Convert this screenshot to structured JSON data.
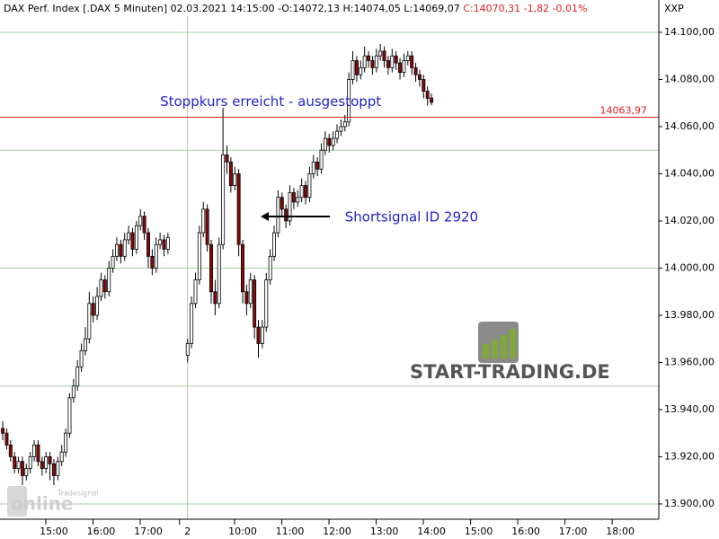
{
  "chart_data": {
    "type": "candlestick",
    "title": "DAX Perf. Index [.DAX  5 Minuten] 02.03.2021 14:15:00 -O:14072,13 H:14074,05 L:14069,07",
    "title_change": "C:14070,31 -1,82 -0,01%",
    "corner_label": "XXP",
    "up_color": "#ffffff",
    "down_color": "#8b0a0a",
    "candles": [
      [
        0,
        13932,
        13935,
        13927,
        13930
      ],
      [
        1,
        13930,
        13932,
        13923,
        13925
      ],
      [
        2,
        13925,
        13927,
        13918,
        13920
      ],
      [
        3,
        13920,
        13922,
        13913,
        13915
      ],
      [
        4,
        13915,
        13920,
        13913,
        13918
      ],
      [
        5,
        13918,
        13920,
        13908,
        13912
      ],
      [
        6,
        13912,
        13917,
        13910,
        13915
      ],
      [
        7,
        13915,
        13922,
        13913,
        13920
      ],
      [
        8,
        13920,
        13927,
        13918,
        13925
      ],
      [
        9,
        13925,
        13927,
        13916,
        13918
      ],
      [
        10,
        13918,
        13920,
        13912,
        13915
      ],
      [
        11,
        13915,
        13922,
        13913,
        13920
      ],
      [
        12,
        13920,
        13922,
        13910,
        13917
      ],
      [
        13,
        13917,
        13919,
        13908,
        13912
      ],
      [
        14,
        13912,
        13920,
        13910,
        13918
      ],
      [
        15,
        13918,
        13925,
        13916,
        13922
      ],
      [
        16,
        13922,
        13932,
        13920,
        13930
      ],
      [
        17,
        13930,
        13947,
        13928,
        13945
      ],
      [
        18,
        13945,
        13953,
        13943,
        13950
      ],
      [
        19,
        13950,
        13961,
        13948,
        13958
      ],
      [
        20,
        13958,
        13968,
        13956,
        13965
      ],
      [
        21,
        13965,
        13975,
        13963,
        13970
      ],
      [
        22,
        13970,
        13990,
        13968,
        13985
      ],
      [
        23,
        13985,
        13988,
        13977,
        13980
      ],
      [
        24,
        13980,
        13992,
        13978,
        13988
      ],
      [
        25,
        13988,
        13998,
        13986,
        13995
      ],
      [
        26,
        13995,
        13997,
        13987,
        13990
      ],
      [
        27,
        13990,
        14003,
        13988,
        14000
      ],
      [
        28,
        14000,
        14008,
        13998,
        14005
      ],
      [
        29,
        14005,
        14013,
        14003,
        14010
      ],
      [
        30,
        14010,
        14012,
        14002,
        14005
      ],
      [
        31,
        14005,
        14015,
        14003,
        14012
      ],
      [
        32,
        14012,
        14018,
        14010,
        14015
      ],
      [
        33,
        14015,
        14017,
        14005,
        14008
      ],
      [
        34,
        14008,
        14020,
        14006,
        14018
      ],
      [
        35,
        14018,
        14025,
        14016,
        14022
      ],
      [
        36,
        14022,
        14024,
        14012,
        14015
      ],
      [
        37,
        14015,
        14017,
        14000,
        14005
      ],
      [
        38,
        14005,
        14008,
        13997,
        14000
      ],
      [
        39,
        14000,
        14013,
        13998,
        14010
      ],
      [
        40,
        14010,
        14015,
        14008,
        14012
      ],
      [
        41,
        14012,
        14014,
        14005,
        14008
      ],
      [
        42,
        14008,
        14015,
        14006,
        14013
      ],
      [
        47,
        13963,
        13970,
        13960,
        13968
      ],
      [
        48,
        13968,
        13988,
        13966,
        13985
      ],
      [
        49,
        13985,
        13998,
        13983,
        13995
      ],
      [
        50,
        13995,
        14018,
        13993,
        14015
      ],
      [
        51,
        14015,
        14028,
        14013,
        14025
      ],
      [
        52,
        14025,
        14027,
        14007,
        14010
      ],
      [
        53,
        14010,
        14012,
        13985,
        13990
      ],
      [
        54,
        13990,
        13995,
        13980,
        13985
      ],
      [
        55,
        13985,
        14013,
        13983,
        14010
      ],
      [
        56,
        14010,
        14068,
        14008,
        14048
      ],
      [
        57,
        14048,
        14052,
        14040,
        14045
      ],
      [
        58,
        14045,
        14047,
        14032,
        14035
      ],
      [
        59,
        14035,
        14043,
        14033,
        14040
      ],
      [
        60,
        14040,
        14042,
        14005,
        14010
      ],
      [
        61,
        14010,
        14012,
        13985,
        13990
      ],
      [
        62,
        13990,
        13993,
        13980,
        13985
      ],
      [
        63,
        13985,
        13998,
        13983,
        13995
      ],
      [
        64,
        13995,
        13997,
        13970,
        13975
      ],
      [
        65,
        13975,
        13978,
        13962,
        13968
      ],
      [
        66,
        13968,
        13978,
        13966,
        13975
      ],
      [
        67,
        13975,
        13998,
        13973,
        13995
      ],
      [
        68,
        13995,
        14008,
        13993,
        14005
      ],
      [
        69,
        14005,
        14018,
        14003,
        14015
      ],
      [
        70,
        14015,
        14033,
        14013,
        14030
      ],
      [
        71,
        14030,
        14032,
        14022,
        14025
      ],
      [
        72,
        14025,
        14027,
        14017,
        14020
      ],
      [
        73,
        14020,
        14035,
        14018,
        14032
      ],
      [
        74,
        14032,
        14034,
        14025,
        14028
      ],
      [
        75,
        14028,
        14033,
        14026,
        14030
      ],
      [
        76,
        14030,
        14038,
        14028,
        14035
      ],
      [
        77,
        14035,
        14037,
        14027,
        14030
      ],
      [
        78,
        14030,
        14043,
        14028,
        14040
      ],
      [
        79,
        14040,
        14048,
        14038,
        14045
      ],
      [
        80,
        14045,
        14047,
        14039,
        14042
      ],
      [
        81,
        14042,
        14053,
        14040,
        14050
      ],
      [
        82,
        14050,
        14058,
        14048,
        14055
      ],
      [
        83,
        14055,
        14057,
        14049,
        14052
      ],
      [
        84,
        14052,
        14058,
        14050,
        14055
      ],
      [
        85,
        14055,
        14061,
        14053,
        14058
      ],
      [
        86,
        14058,
        14063,
        14056,
        14060
      ],
      [
        87,
        14060,
        14065,
        14058,
        14062
      ],
      [
        88,
        14062,
        14083,
        14060,
        14080
      ],
      [
        89,
        14080,
        14092,
        14078,
        14088
      ],
      [
        90,
        14088,
        14090,
        14079,
        14082
      ],
      [
        91,
        14082,
        14088,
        14080,
        14085
      ],
      [
        92,
        14085,
        14094,
        14083,
        14090
      ],
      [
        93,
        14090,
        14092,
        14085,
        14088
      ],
      [
        94,
        14088,
        14090,
        14082,
        14085
      ],
      [
        95,
        14085,
        14093,
        14083,
        14090
      ],
      [
        96,
        14090,
        14095,
        14088,
        14092
      ],
      [
        97,
        14092,
        14094,
        14085,
        14088
      ],
      [
        98,
        14088,
        14090,
        14082,
        14085
      ],
      [
        99,
        14085,
        14093,
        14083,
        14090
      ],
      [
        100,
        14090,
        14092,
        14084,
        14087
      ],
      [
        101,
        14087,
        14089,
        14080,
        14083
      ],
      [
        102,
        14083,
        14091,
        14081,
        14088
      ],
      [
        103,
        14088,
        14092,
        14086,
        14090
      ],
      [
        104,
        14090,
        14092,
        14082,
        14085
      ],
      [
        105,
        14085,
        14087,
        14079,
        14082
      ],
      [
        106,
        14082,
        14084,
        14077,
        14080
      ],
      [
        107,
        14080,
        14082,
        14072,
        14075
      ],
      [
        108,
        14075,
        14077,
        14069,
        14072
      ],
      [
        109,
        14072.13,
        14074.05,
        14069.07,
        14070.31
      ]
    ],
    "xlim": [
      -0.7,
      166.8
    ],
    "xticks": [
      {
        "value": 13,
        "label": "15:00"
      },
      {
        "value": 25,
        "label": "16:00"
      },
      {
        "value": 37,
        "label": "17:00"
      },
      {
        "value": 47,
        "label": "2"
      },
      {
        "value": 61,
        "label": "10:00"
      },
      {
        "value": 73,
        "label": "11:00"
      },
      {
        "value": 85,
        "label": "12:00"
      },
      {
        "value": 97,
        "label": "13:00"
      },
      {
        "value": 109,
        "label": "14:00"
      },
      {
        "value": 121,
        "label": "15:00"
      },
      {
        "value": 133,
        "label": "16:00"
      },
      {
        "value": 145,
        "label": "17:00"
      },
      {
        "value": 157,
        "label": "18:00"
      }
    ],
    "xgrid": [
      47
    ],
    "ylim": [
      13893.5,
      14113.7
    ],
    "yticks": [
      {
        "value": 13900,
        "label": "13.900,00"
      },
      {
        "value": 13920,
        "label": "13.920,00"
      },
      {
        "value": 13940,
        "label": "13.940,00"
      },
      {
        "value": 13960,
        "label": "13.960,00"
      },
      {
        "value": 13980,
        "label": "13.980,00"
      },
      {
        "value": 14000,
        "label": "14.000,00"
      },
      {
        "value": 14020,
        "label": "14.020,00"
      },
      {
        "value": 14040,
        "label": "14.040,00"
      },
      {
        "value": 14060,
        "label": "14.060,00"
      },
      {
        "value": 14080,
        "label": "14.080,00"
      },
      {
        "value": 14100,
        "label": "14.100,00"
      }
    ],
    "ygrid": [
      13900,
      13950,
      14000,
      14050,
      14100
    ],
    "stop_line": {
      "value": 14063.97,
      "label": "14063,97",
      "color": "#e02020"
    },
    "annotations": [
      {
        "text": "Stoppkurs erreicht - ausgestoppt",
        "x": 40,
        "y": 14070.5
      },
      {
        "text": "Shortsignal ID 2920",
        "x": 87,
        "y": 14021.5
      }
    ],
    "logo_text": "START-TRADING.DE",
    "watermark": [
      "online",
      "Tradesignal"
    ]
  }
}
